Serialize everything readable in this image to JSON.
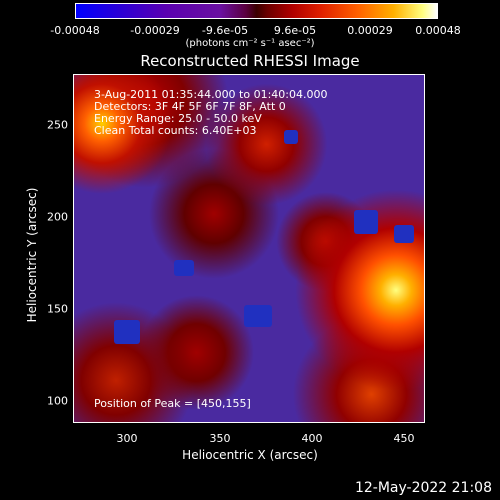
{
  "colorbar": {
    "tick_labels": [
      "-0.00048",
      "-0.00029",
      "-9.6e-05",
      "9.6e-05",
      "0.00029",
      "0.00048"
    ],
    "units": "(photons cm⁻² s⁻¹ asec⁻²)"
  },
  "plot": {
    "title": "Reconstructed RHESSI Image",
    "info_lines": [
      "3-Aug-2011 01:35:44.000 to 01:40:04.000",
      "Detectors: 3F 4F 5F 6F 7F 8F, Att 0",
      "Energy Range: 25.0 - 50.0 keV",
      "Clean    Total counts: 6.40E+03"
    ],
    "peak_text": "Position of Peak = [450,155]",
    "xlabel": "Heliocentric X (arcsec)",
    "ylabel": "Heliocentric Y (arcsec)",
    "xticks": [
      "300",
      "350",
      "400",
      "450"
    ],
    "yticks": [
      "250",
      "200",
      "150",
      "100"
    ]
  },
  "footer": {
    "timestamp": "12-May-2022 21:08"
  }
}
